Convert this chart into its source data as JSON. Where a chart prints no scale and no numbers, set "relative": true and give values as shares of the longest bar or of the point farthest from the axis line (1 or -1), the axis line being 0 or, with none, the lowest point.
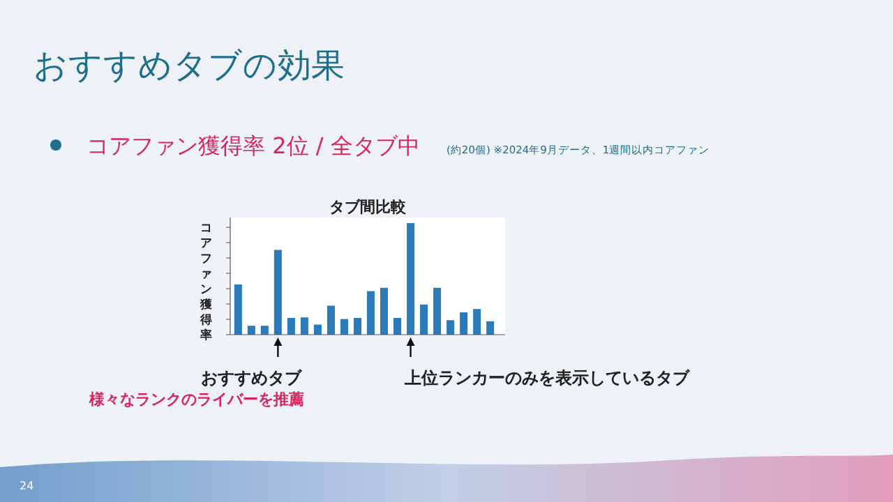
{
  "chart_data": {
    "type": "bar",
    "title": "おすすめタブの効果",
    "subtitle": "コアファン獲得率 2位 / 全タブ中",
    "ylabel": "コアファン獲得率",
    "relative": true,
    "color": "#2b7bba",
    "categories": [
      null,
      null,
      null,
      null,
      null,
      null,
      null,
      null,
      null,
      null,
      null,
      null,
      null,
      null,
      null,
      null,
      null,
      null,
      null,
      null
    ],
    "values": [
      0.45,
      0.08,
      0.08,
      0.76,
      0.15,
      0.155,
      0.09,
      0.26,
      0.14,
      0.15,
      0.39,
      0.42,
      0.15,
      1,
      0.27,
      0.42,
      0.13,
      0.2,
      0.23,
      0.12
    ],
    "annotations": [
      "タブ間比較",
      "おすすめタブ",
      "様々なランクのライバーを推薦",
      "上位ランカーのみを表示しているタブ",
      "(約20個) ※2024年9月データ、1週間以内コアファン",
      "24"
    ]
  }
}
